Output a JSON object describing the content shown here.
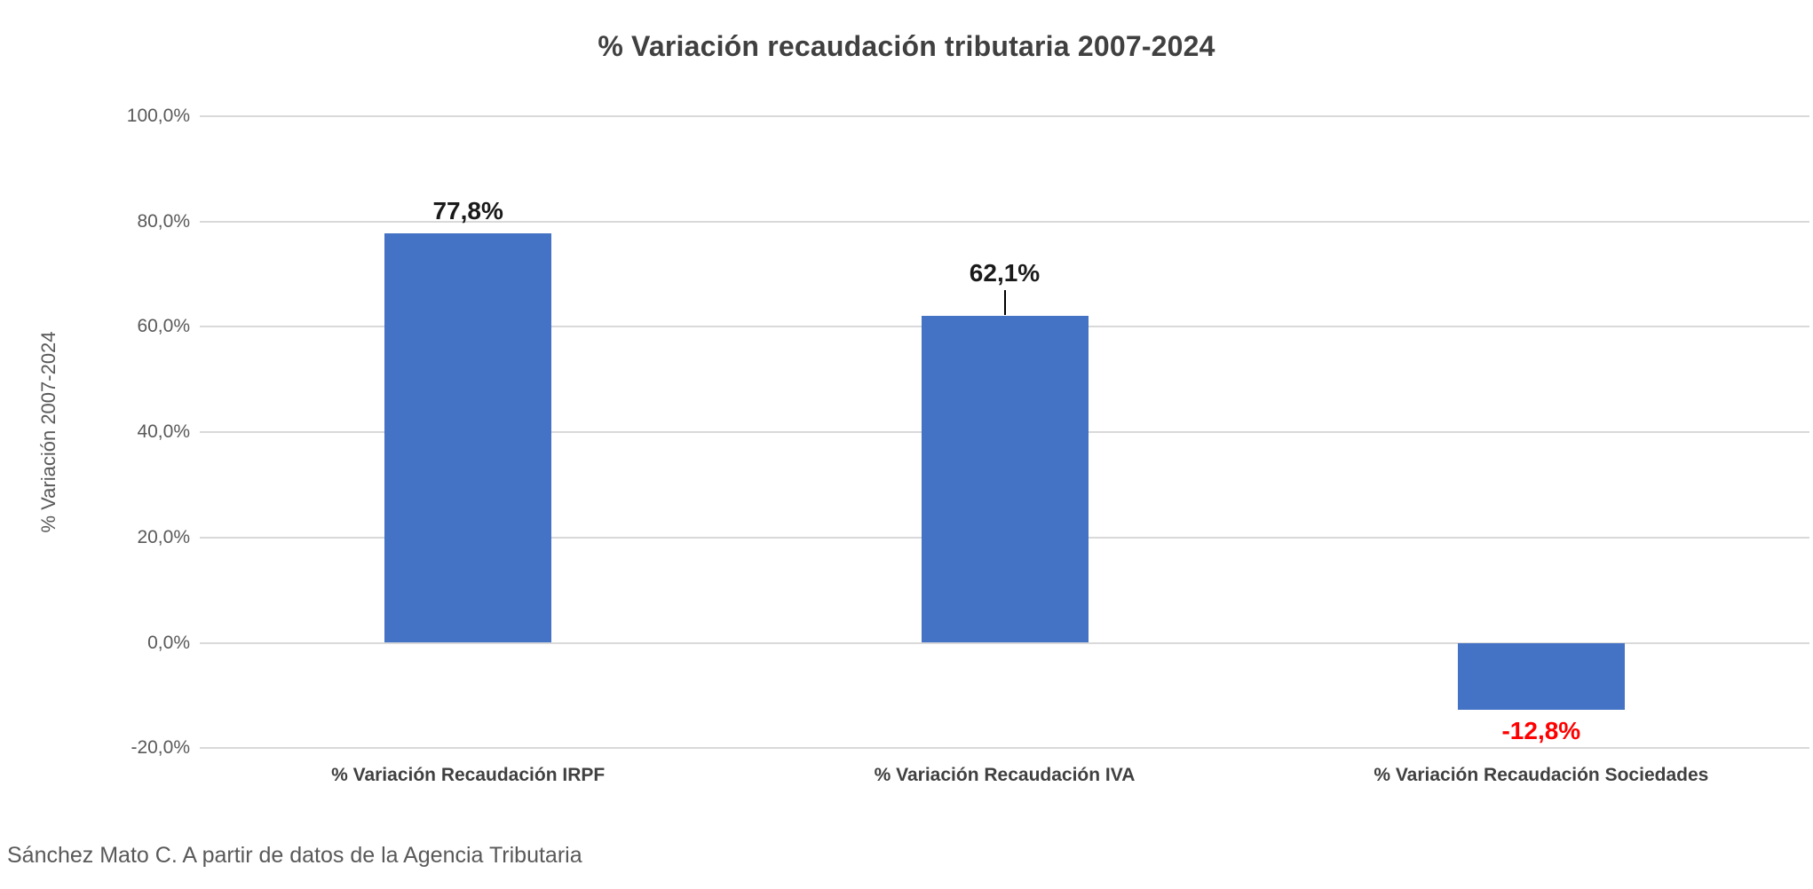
{
  "title": "% Variación recaudación tributaria 2007-2024",
  "footer": "Sánchez Mato C.  A partir de datos de la Agencia Tributaria",
  "chart_data": {
    "type": "bar",
    "title": "% Variación recaudación tributaria 2007-2024",
    "xlabel": "",
    "ylabel": "% Variación 2007-2024",
    "ylim": [
      -20,
      100
    ],
    "grid": true,
    "legend": false,
    "bar_color": "#4472c4",
    "gridline_color": "#d9d9d9",
    "categories": [
      "% Variación Recaudación IRPF",
      "% Variación Recaudación IVA",
      "%  Variación Recaudación Sociedades"
    ],
    "values": [
      77.8,
      62.1,
      -12.8
    ],
    "data_labels": [
      "77,8%",
      "62,1%",
      "-12,8%"
    ],
    "data_label_colors": [
      "#1a1a1a",
      "#1a1a1a",
      "#ff0000"
    ],
    "leader_lines": [
      false,
      true,
      false
    ],
    "y_ticks": [
      {
        "label": "100,0%",
        "value": 100
      },
      {
        "label": "80,0%",
        "value": 80
      },
      {
        "label": "60,0%",
        "value": 60
      },
      {
        "label": "40,0%",
        "value": 40
      },
      {
        "label": "20,0%",
        "value": 20
      },
      {
        "label": "0,0%",
        "value": 0
      },
      {
        "label": "-20,0%",
        "value": -20
      }
    ]
  }
}
